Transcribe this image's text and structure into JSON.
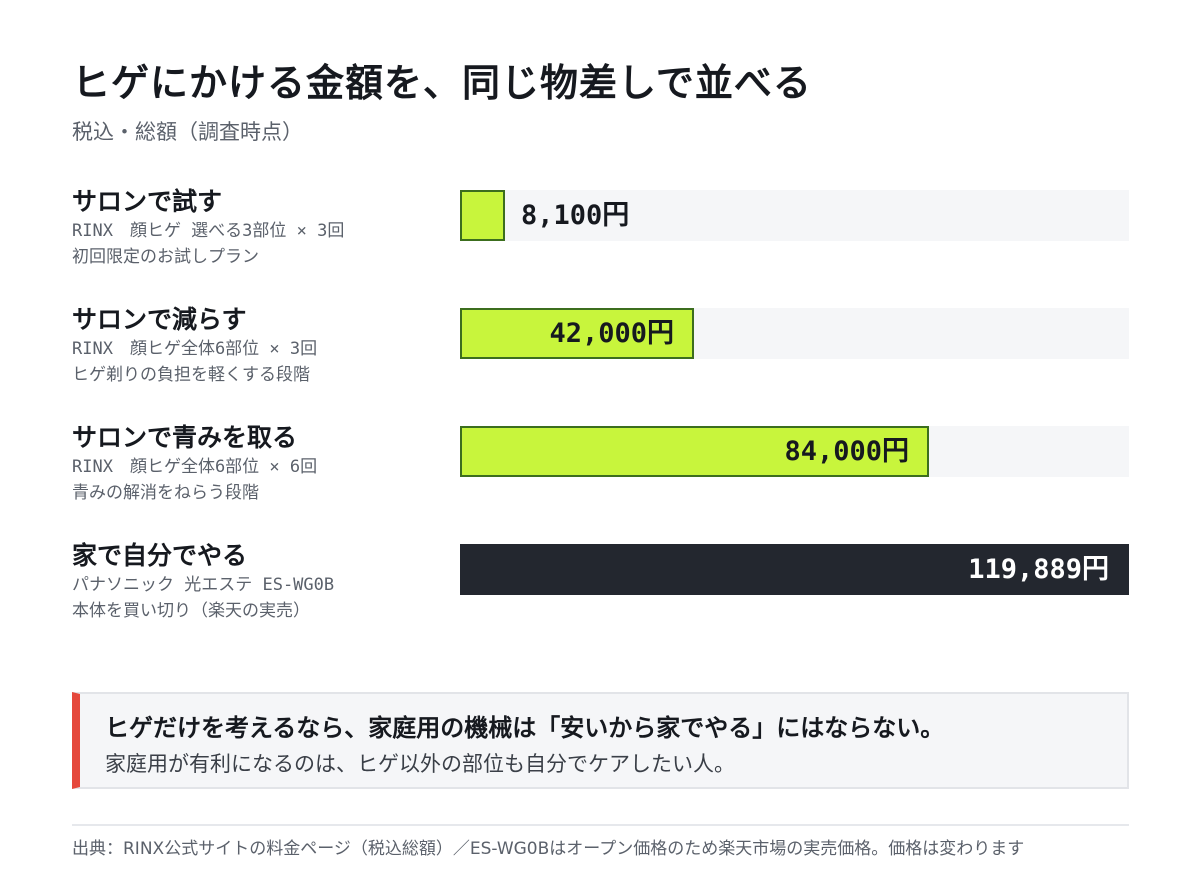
{
  "header": {
    "title": "ヒゲにかける金額を、同じ物差しで並べる",
    "subtitle": "税込・総額（調査時点）"
  },
  "chart_data": {
    "type": "bar",
    "orientation": "horizontal",
    "unit": "円",
    "xlim": [
      0,
      119889
    ],
    "categories": [
      "サロンで試す",
      "サロンで減らす",
      "サロンで青みを取る",
      "家で自分でやる"
    ],
    "values": [
      8100,
      42000,
      84000,
      119889
    ],
    "value_labels": [
      "8,100円",
      "42,000円",
      "84,000円",
      "119,889円"
    ],
    "details": [
      [
        "RINX　顔ヒゲ 選べる3部位 × 3回",
        "初回限定のお試しプラン"
      ],
      [
        "RINX　顔ヒゲ全体6部位 × 3回",
        "ヒゲ剃りの負担を軽くする段階"
      ],
      [
        "RINX　顔ヒゲ全体6部位 × 6回",
        "青みの解消をねらう段階"
      ],
      [
        "パナソニック 光エステ ES-WG0B",
        "本体を買い切り（楽天の実売）"
      ]
    ],
    "highlight_index": 3,
    "colors": {
      "bar": "#c8f53c",
      "bar_border": "#3c6e1e",
      "highlight": "#23272f",
      "track": "#f5f6f8"
    }
  },
  "callout": {
    "headline": "ヒゲだけを考えるなら、家庭用の機械は「安いから家でやる」にはならない。",
    "body": "家庭用が有利になるのは、ヒゲ以外の部位も自分でケアしたい人。",
    "accent_color": "#e5483c"
  },
  "footer": {
    "source": "出典：RINX公式サイトの料金ページ（税込総額）／ES-WG0Bはオープン価格のため楽天市場の実売価格。価格は変わります"
  }
}
